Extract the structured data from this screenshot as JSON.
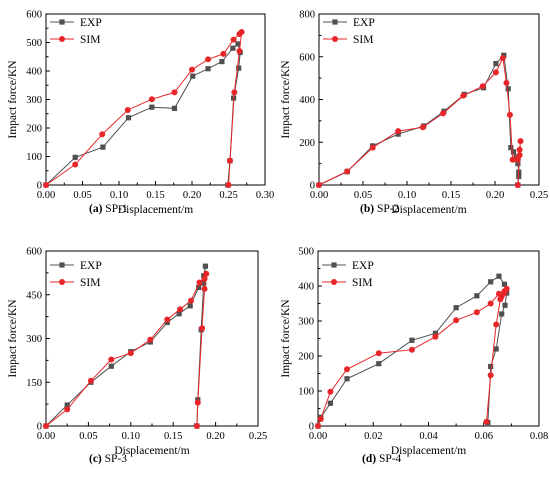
{
  "chart_data": [
    {
      "type": "line",
      "caption_letter": "(a)",
      "caption_text": " SP-1",
      "xlabel": "Displacement/m",
      "ylabel": "Impact force/KN",
      "xlim": [
        0,
        0.3
      ],
      "ylim": [
        0,
        600
      ],
      "xticks": [
        "0.00",
        "0.05",
        "0.10",
        "0.15",
        "0.20",
        "0.25",
        "0.30"
      ],
      "yticks": [
        "0",
        "100",
        "200",
        "300",
        "400",
        "500",
        "600"
      ],
      "legend": "top-left",
      "series": [
        {
          "name": "EXP",
          "color": "#505050",
          "marker": "square",
          "x": [
            0.0,
            0.04,
            0.078,
            0.113,
            0.145,
            0.176,
            0.201,
            0.222,
            0.241,
            0.256,
            0.263,
            0.266,
            0.264,
            0.257,
            0.252,
            0.249
          ],
          "y": [
            0,
            97,
            133,
            236,
            273,
            269,
            382,
            408,
            433,
            480,
            495,
            465,
            410,
            305,
            85,
            0
          ]
        },
        {
          "name": "SIM",
          "color": "#e8262a",
          "marker": "circle",
          "x": [
            0.0,
            0.04,
            0.077,
            0.112,
            0.145,
            0.176,
            0.2,
            0.222,
            0.243,
            0.257,
            0.265,
            0.268,
            0.265,
            0.258,
            0.252,
            0.25
          ],
          "y": [
            0,
            72,
            178,
            263,
            301,
            325,
            405,
            441,
            460,
            510,
            530,
            537,
            470,
            325,
            85,
            0
          ]
        }
      ]
    },
    {
      "type": "line",
      "caption_letter": "(b)",
      "caption_text": " SP-2",
      "xlabel": "Displacement/m",
      "ylabel": "Impact force/KN",
      "xlim": [
        0,
        0.25
      ],
      "ylim": [
        0,
        800
      ],
      "xticks": [
        "0.00",
        "0.05",
        "0.10",
        "0.15",
        "0.20",
        "0.25"
      ],
      "yticks": [
        "0",
        "200",
        "400",
        "600",
        "800"
      ],
      "legend": "top-left",
      "series": [
        {
          "name": "EXP",
          "color": "#505050",
          "marker": "square",
          "x": [
            0.0,
            0.032,
            0.061,
            0.09,
            0.119,
            0.142,
            0.165,
            0.187,
            0.201,
            0.21,
            0.215,
            0.218,
            0.221,
            0.224,
            0.226,
            0.227,
            0.227,
            0.226
          ],
          "y": [
            0,
            62,
            183,
            238,
            276,
            345,
            424,
            455,
            568,
            607,
            450,
            175,
            155,
            130,
            100,
            60,
            40,
            0
          ]
        },
        {
          "name": "SIM",
          "color": "#e8262a",
          "marker": "circle",
          "x": [
            0.0,
            0.032,
            0.061,
            0.09,
            0.118,
            0.141,
            0.164,
            0.186,
            0.201,
            0.209,
            0.213,
            0.217,
            0.22,
            0.223,
            0.226,
            0.228,
            0.229,
            0.228,
            0.226
          ],
          "y": [
            0,
            64,
            175,
            252,
            270,
            335,
            418,
            462,
            527,
            594,
            478,
            328,
            118,
            121,
            120,
            165,
            205,
            140,
            0
          ]
        }
      ]
    },
    {
      "type": "line",
      "caption_letter": "(c)",
      "caption_text": " SP-3",
      "xlabel": "Displacement/m",
      "ylabel": "Impact force/KN",
      "xlim": [
        0,
        0.25
      ],
      "ylim": [
        0,
        600
      ],
      "xticks": [
        "0.00",
        "0.05",
        "0.10",
        "0.15",
        "0.20",
        "0.25"
      ],
      "yticks": [
        "0",
        "150",
        "300",
        "450",
        "600"
      ],
      "legend": "top-left",
      "series": [
        {
          "name": "EXP",
          "color": "#505050",
          "marker": "square",
          "x": [
            0.0,
            0.025,
            0.053,
            0.077,
            0.1,
            0.123,
            0.143,
            0.157,
            0.17,
            0.18,
            0.186,
            0.188,
            0.186,
            0.183,
            0.179,
            0.178
          ],
          "y": [
            0,
            72,
            150,
            205,
            255,
            288,
            355,
            385,
            412,
            475,
            515,
            548,
            490,
            330,
            90,
            0
          ]
        },
        {
          "name": "SIM",
          "color": "#e8262a",
          "marker": "circle",
          "x": [
            0.0,
            0.025,
            0.053,
            0.077,
            0.1,
            0.123,
            0.143,
            0.158,
            0.171,
            0.181,
            0.187,
            0.189,
            0.187,
            0.184,
            0.179,
            0.178
          ],
          "y": [
            0,
            57,
            155,
            228,
            250,
            296,
            365,
            400,
            430,
            492,
            505,
            522,
            470,
            335,
            80,
            0
          ]
        }
      ]
    },
    {
      "type": "line",
      "caption_letter": "(d)",
      "caption_text": " SP-4",
      "xlabel": "Displacement/m",
      "ylabel": "Impact force/KN",
      "xlim": [
        0,
        0.08
      ],
      "ylim": [
        0,
        500
      ],
      "xticks": [
        "0.00",
        "0.02",
        "0.04",
        "0.06",
        "0.08"
      ],
      "yticks": [
        "0",
        "100",
        "200",
        "300",
        "400",
        "500"
      ],
      "legend": "top-left",
      "series": [
        {
          "name": "EXP",
          "color": "#505050",
          "marker": "square",
          "x": [
            0.0,
            0.001,
            0.0045,
            0.0105,
            0.022,
            0.034,
            0.0425,
            0.05,
            0.0575,
            0.0625,
            0.0655,
            0.0675,
            0.0683,
            0.0677,
            0.0665,
            0.0645,
            0.0625,
            0.0615
          ],
          "y": [
            0,
            25,
            65,
            135,
            178,
            245,
            265,
            338,
            372,
            412,
            428,
            405,
            380,
            345,
            320,
            220,
            170,
            10
          ]
        },
        {
          "name": "SIM",
          "color": "#e8262a",
          "marker": "circle",
          "x": [
            0.0,
            0.001,
            0.0045,
            0.0105,
            0.022,
            0.034,
            0.0425,
            0.05,
            0.0575,
            0.0625,
            0.0655,
            0.0675,
            0.0683,
            0.0675,
            0.0665,
            0.066,
            0.0645,
            0.0625,
            0.061
          ],
          "y": [
            0,
            20,
            98,
            162,
            208,
            218,
            255,
            302,
            325,
            350,
            378,
            385,
            392,
            380,
            370,
            362,
            290,
            145,
            12
          ]
        }
      ]
    }
  ]
}
